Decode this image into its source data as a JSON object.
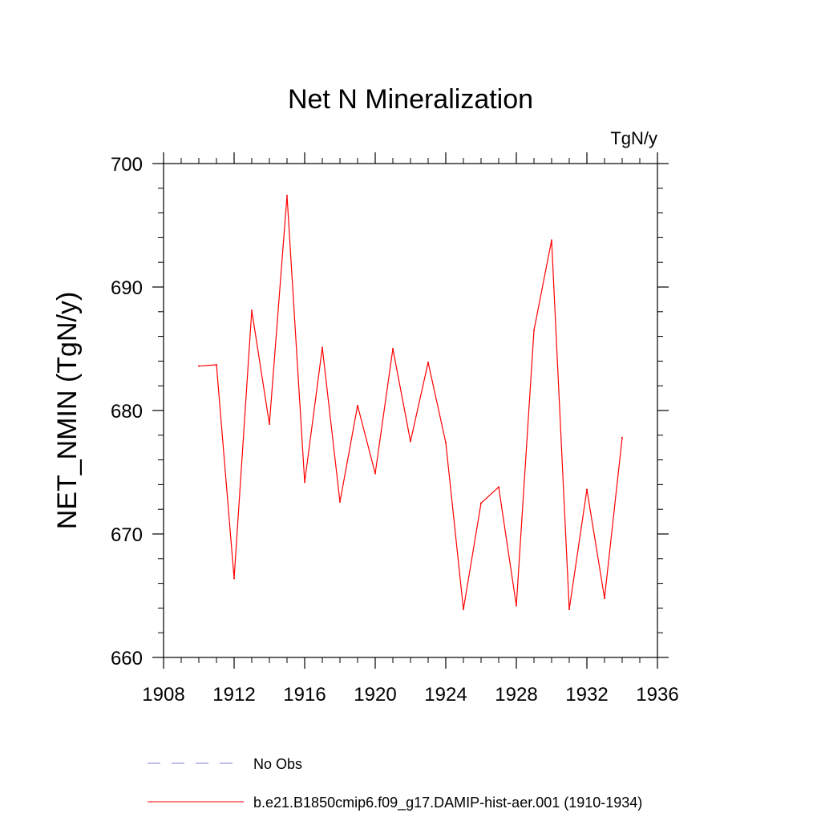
{
  "chart_data": {
    "type": "line",
    "title": "Net N Mineralization",
    "units_label": "TgN/y",
    "ylabel": "NET_NMIN  (TgN/y)",
    "xlabel": "",
    "xlim": [
      1908,
      1936
    ],
    "ylim": [
      660,
      700
    ],
    "x_ticks": [
      1908,
      1912,
      1916,
      1920,
      1924,
      1928,
      1932,
      1936
    ],
    "y_ticks": [
      660,
      670,
      680,
      690,
      700
    ],
    "x_minor_step": 1,
    "y_minor_step": 2,
    "grid": false,
    "x": [
      1910,
      1911,
      1912,
      1913,
      1914,
      1915,
      1916,
      1917,
      1918,
      1919,
      1920,
      1921,
      1922,
      1923,
      1924,
      1925,
      1926,
      1927,
      1928,
      1929,
      1930,
      1931,
      1932,
      1933,
      1934
    ],
    "series": [
      {
        "name": "b.e21.B1850cmip6.f09_g17.DAMIP-hist-aer.001 (1910-1934)",
        "color": "#ff0000",
        "values": [
          683.6,
          683.7,
          666.4,
          688.1,
          678.9,
          697.4,
          674.2,
          685.1,
          672.6,
          680.4,
          674.9,
          685.0,
          677.5,
          683.9,
          677.4,
          663.9,
          672.5,
          673.8,
          664.2,
          686.5,
          693.8,
          663.9,
          673.6,
          664.8,
          677.8
        ]
      }
    ],
    "legend": {
      "placement": "bottom",
      "entries": [
        {
          "label": "No Obs",
          "color": "#7b7bd6",
          "style": "dashed"
        },
        {
          "label": "b.e21.B1850cmip6.f09_g17.DAMIP-hist-aer.001 (1910-1934)",
          "color": "#ff0000",
          "style": "solid"
        }
      ]
    }
  }
}
